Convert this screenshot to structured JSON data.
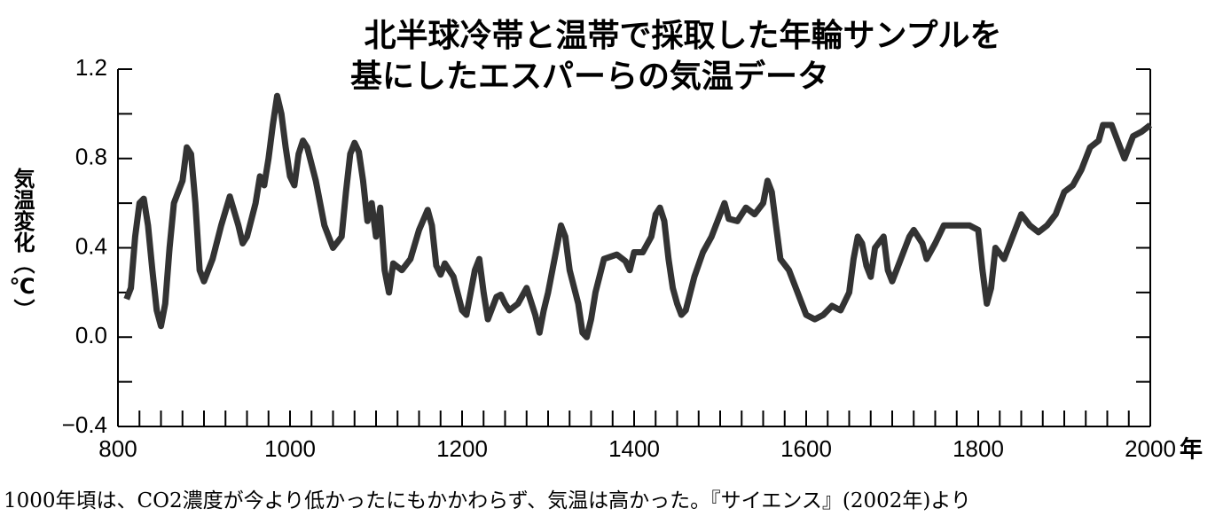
{
  "chart_data": {
    "type": "line",
    "title_lines": [
      "北半球冷帯と温帯で採取した年輪サンプルを",
      "基にしたエスパーらの気温データ"
    ],
    "y_label": "気温変化（℃）",
    "x_unit": "年",
    "caption": "1000年頃は、CO2濃度が今より低かったにもかかわらず、気温は高かった。『サイエンス』(2002年)より",
    "xlim": [
      800,
      2000
    ],
    "xticks": [
      800,
      1000,
      1200,
      1400,
      1600,
      1800,
      2000
    ],
    "xminorticks": [
      825,
      850,
      875,
      900,
      925,
      950,
      975,
      1025,
      1050,
      1075,
      1100,
      1125,
      1150,
      1175,
      1225,
      1250,
      1275,
      1300,
      1325,
      1350,
      1375,
      1425,
      1450,
      1475,
      1500,
      1525,
      1550,
      1575,
      1625,
      1650,
      1675,
      1700,
      1725,
      1750,
      1775,
      1825,
      1850,
      1875,
      1900,
      1925,
      1950,
      1975
    ],
    "ylim": [
      -0.4,
      1.2
    ],
    "yticks": [
      {
        "value": -0.4,
        "label": "−0.4"
      },
      {
        "value": 0,
        "label": "0.0"
      },
      0.4,
      0.8,
      1.2
    ],
    "yminorticks": [
      -0.2,
      0.2,
      0.6,
      1.0
    ],
    "color": "#333333",
    "x": [
      810,
      815,
      820,
      825,
      830,
      835,
      840,
      845,
      850,
      855,
      860,
      865,
      870,
      875,
      880,
      885,
      890,
      895,
      900,
      910,
      920,
      930,
      940,
      945,
      950,
      960,
      965,
      970,
      975,
      980,
      985,
      990,
      995,
      1000,
      1005,
      1010,
      1015,
      1020,
      1030,
      1040,
      1045,
      1050,
      1060,
      1065,
      1070,
      1075,
      1080,
      1085,
      1090,
      1095,
      1100,
      1105,
      1110,
      1115,
      1120,
      1130,
      1140,
      1150,
      1160,
      1165,
      1170,
      1175,
      1180,
      1190,
      1200,
      1205,
      1215,
      1220,
      1225,
      1230,
      1240,
      1245,
      1250,
      1255,
      1265,
      1275,
      1285,
      1290,
      1295,
      1300,
      1310,
      1315,
      1320,
      1325,
      1335,
      1340,
      1345,
      1350,
      1355,
      1365,
      1380,
      1390,
      1395,
      1400,
      1410,
      1420,
      1425,
      1430,
      1435,
      1440,
      1445,
      1450,
      1455,
      1460,
      1470,
      1480,
      1490,
      1500,
      1505,
      1510,
      1520,
      1530,
      1540,
      1550,
      1555,
      1560,
      1565,
      1570,
      1580,
      1590,
      1600,
      1610,
      1620,
      1630,
      1640,
      1650,
      1655,
      1660,
      1665,
      1670,
      1675,
      1680,
      1690,
      1695,
      1700,
      1710,
      1720,
      1725,
      1735,
      1740,
      1750,
      1760,
      1780,
      1790,
      1800,
      1805,
      1810,
      1815,
      1820,
      1830,
      1840,
      1850,
      1860,
      1870,
      1880,
      1890,
      1900,
      1910,
      1920,
      1930,
      1940,
      1945,
      1955,
      1965,
      1970,
      1980,
      1990,
      2000
    ],
    "values": [
      0.17,
      0.22,
      0.45,
      0.6,
      0.62,
      0.5,
      0.3,
      0.12,
      0.05,
      0.15,
      0.4,
      0.6,
      0.65,
      0.7,
      0.85,
      0.82,
      0.6,
      0.3,
      0.25,
      0.35,
      0.5,
      0.63,
      0.5,
      0.42,
      0.45,
      0.6,
      0.72,
      0.68,
      0.8,
      0.95,
      1.08,
      1.0,
      0.85,
      0.72,
      0.68,
      0.82,
      0.88,
      0.85,
      0.7,
      0.5,
      0.45,
      0.4,
      0.45,
      0.65,
      0.82,
      0.87,
      0.83,
      0.7,
      0.52,
      0.6,
      0.45,
      0.58,
      0.3,
      0.2,
      0.33,
      0.3,
      0.35,
      0.48,
      0.57,
      0.5,
      0.32,
      0.28,
      0.33,
      0.27,
      0.12,
      0.1,
      0.3,
      0.35,
      0.2,
      0.08,
      0.18,
      0.19,
      0.15,
      0.12,
      0.15,
      0.22,
      0.1,
      0.02,
      0.12,
      0.2,
      0.4,
      0.5,
      0.45,
      0.3,
      0.15,
      0.02,
      0.0,
      0.08,
      0.2,
      0.35,
      0.37,
      0.34,
      0.3,
      0.38,
      0.38,
      0.45,
      0.55,
      0.58,
      0.52,
      0.35,
      0.22,
      0.15,
      0.1,
      0.12,
      0.27,
      0.38,
      0.45,
      0.55,
      0.6,
      0.53,
      0.52,
      0.58,
      0.55,
      0.6,
      0.7,
      0.65,
      0.5,
      0.35,
      0.3,
      0.2,
      0.1,
      0.08,
      0.1,
      0.14,
      0.12,
      0.2,
      0.35,
      0.45,
      0.42,
      0.32,
      0.27,
      0.4,
      0.45,
      0.3,
      0.25,
      0.35,
      0.45,
      0.48,
      0.42,
      0.35,
      0.42,
      0.5,
      0.5,
      0.5,
      0.48,
      0.3,
      0.15,
      0.22,
      0.4,
      0.35,
      0.45,
      0.55,
      0.5,
      0.47,
      0.5,
      0.55,
      0.65,
      0.68,
      0.75,
      0.85,
      0.88,
      0.95,
      0.95,
      0.85,
      0.8,
      0.9,
      0.92,
      0.95
    ]
  }
}
